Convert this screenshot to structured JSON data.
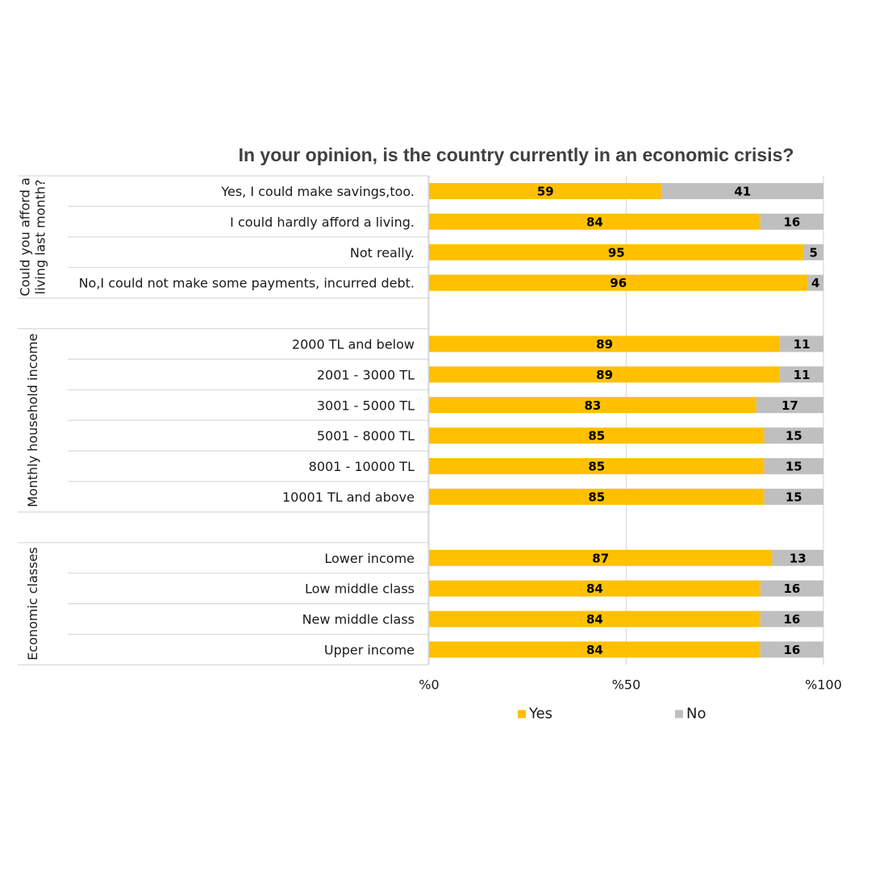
{
  "colors": {
    "yes": "#FFC000",
    "no": "#BFBFBF",
    "grid": "#D9D9D9",
    "title": "#404040"
  },
  "chart_data": {
    "type": "bar",
    "orientation": "horizontal",
    "stacked": true,
    "title": "In your opinion, is the country currently in an economic crisis?",
    "axis": {
      "min": 0,
      "max": 100,
      "ticks": [
        0,
        50,
        100
      ],
      "tick_labels": [
        "%0",
        "%50",
        "%100"
      ]
    },
    "legend": [
      {
        "name": "Yes",
        "color": "#FFC000"
      },
      {
        "name": "No",
        "color": "#BFBFBF"
      }
    ],
    "groups": [
      {
        "name": "Could you afford a living last month?",
        "name_lines": [
          "Could you afford a",
          "living last month?"
        ],
        "rows": [
          {
            "label": "Yes, I could make savings,too.",
            "yes": 59,
            "no": 41
          },
          {
            "label": "I could hardly afford a living.",
            "yes": 84,
            "no": 16
          },
          {
            "label": "Not really.",
            "yes": 95,
            "no": 5
          },
          {
            "label": "No,I could not make some payments, incurred debt.",
            "yes": 96,
            "no": 4
          }
        ]
      },
      {
        "name": "Monthly household income",
        "name_lines": [
          "Monthly household income"
        ],
        "rows": [
          {
            "label": "2000 TL and below",
            "yes": 89,
            "no": 11
          },
          {
            "label": "2001 - 3000 TL",
            "yes": 89,
            "no": 11
          },
          {
            "label": "3001 - 5000 TL",
            "yes": 83,
            "no": 17
          },
          {
            "label": "5001 - 8000 TL",
            "yes": 85,
            "no": 15
          },
          {
            "label": "8001 - 10000 TL",
            "yes": 85,
            "no": 15
          },
          {
            "label": "10001 TL and above",
            "yes": 85,
            "no": 15
          }
        ]
      },
      {
        "name": "Economic classes",
        "name_lines": [
          "Economic classes"
        ],
        "rows": [
          {
            "label": "Lower income",
            "yes": 87,
            "no": 13
          },
          {
            "label": "Low middle class",
            "yes": 84,
            "no": 16
          },
          {
            "label": "New middle class",
            "yes": 84,
            "no": 16
          },
          {
            "label": "Upper income",
            "yes": 84,
            "no": 16
          }
        ]
      }
    ]
  }
}
